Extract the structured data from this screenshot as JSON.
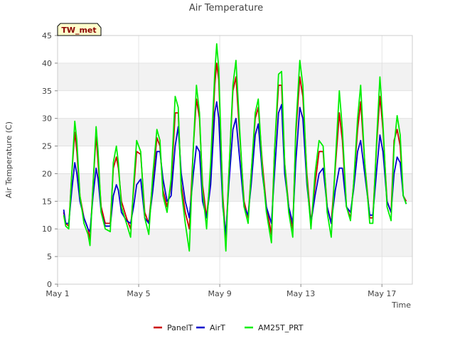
{
  "chart_data": {
    "type": "line",
    "title": "Air Temperature",
    "badge": "TW_met",
    "xlabel": "Time",
    "ylabel": "Air Temperature (C)",
    "xlim": [
      1,
      18.5
    ],
    "ylim": [
      0,
      45
    ],
    "yticks": [
      0,
      5,
      10,
      15,
      20,
      25,
      30,
      35,
      40,
      45
    ],
    "xticks": [
      {
        "label": "May 1",
        "day": 1
      },
      {
        "label": "May 5",
        "day": 5
      },
      {
        "label": "May 9",
        "day": 9
      },
      {
        "label": "May 13",
        "day": 13
      },
      {
        "label": "May 17",
        "day": 17
      }
    ],
    "grid": true,
    "legend_position": "bottom",
    "x_unit": "day of May",
    "series": [
      {
        "name": "PanelT",
        "color": "#cc0000",
        "points": [
          [
            1.3,
            13
          ],
          [
            1.4,
            11
          ],
          [
            1.55,
            10.5
          ],
          [
            1.7,
            20
          ],
          [
            1.85,
            27.5
          ],
          [
            1.95,
            24
          ],
          [
            2.1,
            16
          ],
          [
            2.3,
            12
          ],
          [
            2.5,
            10
          ],
          [
            2.6,
            8
          ],
          [
            2.75,
            18
          ],
          [
            2.9,
            27
          ],
          [
            3.0,
            22
          ],
          [
            3.15,
            14
          ],
          [
            3.35,
            11
          ],
          [
            3.6,
            11
          ],
          [
            3.75,
            21
          ],
          [
            3.9,
            23
          ],
          [
            4.0,
            21
          ],
          [
            4.15,
            15
          ],
          [
            4.4,
            12
          ],
          [
            4.6,
            10
          ],
          [
            4.75,
            17
          ],
          [
            4.9,
            24
          ],
          [
            5.1,
            23.5
          ],
          [
            5.3,
            13
          ],
          [
            5.5,
            11
          ],
          [
            5.7,
            19
          ],
          [
            5.9,
            26.5
          ],
          [
            6.05,
            25
          ],
          [
            6.2,
            17
          ],
          [
            6.4,
            14
          ],
          [
            6.6,
            18
          ],
          [
            6.8,
            31
          ],
          [
            6.95,
            31
          ],
          [
            7.1,
            18
          ],
          [
            7.3,
            13
          ],
          [
            7.5,
            10
          ],
          [
            7.7,
            25
          ],
          [
            7.85,
            33.5
          ],
          [
            8.0,
            30
          ],
          [
            8.15,
            18
          ],
          [
            8.35,
            12
          ],
          [
            8.55,
            20
          ],
          [
            8.75,
            36
          ],
          [
            8.85,
            40
          ],
          [
            8.95,
            37
          ],
          [
            9.15,
            16
          ],
          [
            9.3,
            8
          ],
          [
            9.45,
            20
          ],
          [
            9.65,
            35
          ],
          [
            9.8,
            37.5
          ],
          [
            10.0,
            26
          ],
          [
            10.2,
            15
          ],
          [
            10.4,
            12
          ],
          [
            10.55,
            20
          ],
          [
            10.75,
            30
          ],
          [
            10.9,
            32
          ],
          [
            11.1,
            22
          ],
          [
            11.3,
            14
          ],
          [
            11.55,
            9
          ],
          [
            11.7,
            24
          ],
          [
            11.9,
            36
          ],
          [
            12.05,
            36
          ],
          [
            12.2,
            22
          ],
          [
            12.4,
            14
          ],
          [
            12.6,
            10
          ],
          [
            12.75,
            27
          ],
          [
            12.95,
            37.5
          ],
          [
            13.1,
            34
          ],
          [
            13.3,
            20
          ],
          [
            13.5,
            11
          ],
          [
            13.7,
            18
          ],
          [
            13.9,
            24
          ],
          [
            14.1,
            24
          ],
          [
            14.3,
            14
          ],
          [
            14.5,
            11
          ],
          [
            14.7,
            21
          ],
          [
            14.9,
            31
          ],
          [
            15.05,
            26
          ],
          [
            15.25,
            14
          ],
          [
            15.45,
            12
          ],
          [
            15.6,
            18
          ],
          [
            15.8,
            28
          ],
          [
            15.95,
            33
          ],
          [
            16.15,
            22
          ],
          [
            16.4,
            12
          ],
          [
            16.55,
            12
          ],
          [
            16.75,
            26
          ],
          [
            16.9,
            34
          ],
          [
            17.05,
            28
          ],
          [
            17.25,
            15
          ],
          [
            17.45,
            13
          ],
          [
            17.6,
            26
          ],
          [
            17.75,
            28
          ],
          [
            17.9,
            25
          ],
          [
            18.05,
            16
          ],
          [
            18.2,
            15
          ]
        ]
      },
      {
        "name": "AirT",
        "color": "#0000cc",
        "points": [
          [
            1.3,
            13.5
          ],
          [
            1.4,
            11
          ],
          [
            1.55,
            11
          ],
          [
            1.7,
            17
          ],
          [
            1.85,
            22
          ],
          [
            1.95,
            20
          ],
          [
            2.1,
            15
          ],
          [
            2.3,
            12
          ],
          [
            2.5,
            10
          ],
          [
            2.6,
            9.5
          ],
          [
            2.75,
            16
          ],
          [
            2.9,
            21
          ],
          [
            3.0,
            19
          ],
          [
            3.15,
            13
          ],
          [
            3.35,
            10.5
          ],
          [
            3.6,
            10.5
          ],
          [
            3.75,
            16
          ],
          [
            3.9,
            18
          ],
          [
            4.0,
            17
          ],
          [
            4.15,
            13
          ],
          [
            4.4,
            11.5
          ],
          [
            4.6,
            11
          ],
          [
            4.75,
            14
          ],
          [
            4.9,
            18
          ],
          [
            5.1,
            19
          ],
          [
            5.3,
            12
          ],
          [
            5.5,
            11
          ],
          [
            5.7,
            17
          ],
          [
            5.9,
            24
          ],
          [
            6.05,
            24
          ],
          [
            6.2,
            19
          ],
          [
            6.4,
            15
          ],
          [
            6.6,
            16
          ],
          [
            6.8,
            25
          ],
          [
            6.95,
            28.5
          ],
          [
            7.1,
            20
          ],
          [
            7.3,
            15
          ],
          [
            7.5,
            12
          ],
          [
            7.7,
            20
          ],
          [
            7.85,
            25
          ],
          [
            8.0,
            24
          ],
          [
            8.15,
            15
          ],
          [
            8.35,
            12
          ],
          [
            8.55,
            18
          ],
          [
            8.75,
            31
          ],
          [
            8.85,
            33
          ],
          [
            8.95,
            30
          ],
          [
            9.15,
            14
          ],
          [
            9.3,
            9
          ],
          [
            9.45,
            18
          ],
          [
            9.65,
            28
          ],
          [
            9.8,
            30
          ],
          [
            10.0,
            22
          ],
          [
            10.2,
            14
          ],
          [
            10.4,
            12.5
          ],
          [
            10.55,
            18
          ],
          [
            10.75,
            27
          ],
          [
            10.9,
            29
          ],
          [
            11.1,
            20
          ],
          [
            11.3,
            14
          ],
          [
            11.55,
            11
          ],
          [
            11.7,
            20
          ],
          [
            11.9,
            31
          ],
          [
            12.05,
            32.5
          ],
          [
            12.2,
            20
          ],
          [
            12.4,
            14
          ],
          [
            12.6,
            11
          ],
          [
            12.75,
            22
          ],
          [
            12.95,
            32
          ],
          [
            13.1,
            30
          ],
          [
            13.3,
            18
          ],
          [
            13.5,
            11
          ],
          [
            13.7,
            16
          ],
          [
            13.9,
            20
          ],
          [
            14.1,
            21
          ],
          [
            14.3,
            14
          ],
          [
            14.5,
            11
          ],
          [
            14.7,
            17
          ],
          [
            14.9,
            21
          ],
          [
            15.05,
            21
          ],
          [
            15.25,
            14
          ],
          [
            15.45,
            13
          ],
          [
            15.6,
            17
          ],
          [
            15.8,
            24
          ],
          [
            15.95,
            26
          ],
          [
            16.15,
            20
          ],
          [
            16.4,
            12.5
          ],
          [
            16.55,
            12.5
          ],
          [
            16.75,
            21
          ],
          [
            16.9,
            27
          ],
          [
            17.05,
            24
          ],
          [
            17.25,
            15
          ],
          [
            17.45,
            13
          ],
          [
            17.6,
            20
          ],
          [
            17.75,
            23
          ],
          [
            17.9,
            22
          ],
          [
            18.05,
            16
          ],
          [
            18.2,
            14.5
          ]
        ]
      },
      {
        "name": "AM25T_PRT",
        "color": "#00ee00",
        "points": [
          [
            1.3,
            12.5
          ],
          [
            1.4,
            10.5
          ],
          [
            1.55,
            10
          ],
          [
            1.7,
            20
          ],
          [
            1.85,
            29.5
          ],
          [
            1.95,
            26
          ],
          [
            2.1,
            16
          ],
          [
            2.3,
            11
          ],
          [
            2.5,
            9
          ],
          [
            2.6,
            7
          ],
          [
            2.75,
            18
          ],
          [
            2.9,
            28.5
          ],
          [
            3.0,
            24
          ],
          [
            3.15,
            13
          ],
          [
            3.35,
            10
          ],
          [
            3.6,
            9.5
          ],
          [
            3.75,
            22
          ],
          [
            3.9,
            25
          ],
          [
            4.0,
            22
          ],
          [
            4.15,
            14
          ],
          [
            4.4,
            11
          ],
          [
            4.6,
            8.5
          ],
          [
            4.75,
            18
          ],
          [
            4.9,
            26
          ],
          [
            5.1,
            24
          ],
          [
            5.3,
            12
          ],
          [
            5.5,
            9
          ],
          [
            5.7,
            20
          ],
          [
            5.9,
            28
          ],
          [
            6.05,
            26
          ],
          [
            6.2,
            16
          ],
          [
            6.4,
            13
          ],
          [
            6.6,
            19
          ],
          [
            6.8,
            34
          ],
          [
            6.95,
            32
          ],
          [
            7.1,
            17
          ],
          [
            7.3,
            11
          ],
          [
            7.5,
            6
          ],
          [
            7.7,
            25
          ],
          [
            7.85,
            36
          ],
          [
            8.0,
            31
          ],
          [
            8.15,
            17
          ],
          [
            8.35,
            10
          ],
          [
            8.55,
            22
          ],
          [
            8.75,
            38
          ],
          [
            8.85,
            43.5
          ],
          [
            8.95,
            39
          ],
          [
            9.15,
            15
          ],
          [
            9.3,
            6
          ],
          [
            9.45,
            20
          ],
          [
            9.65,
            36
          ],
          [
            9.8,
            40.5
          ],
          [
            10.0,
            27
          ],
          [
            10.2,
            14
          ],
          [
            10.4,
            11
          ],
          [
            10.55,
            20
          ],
          [
            10.75,
            31
          ],
          [
            10.9,
            33.5
          ],
          [
            11.1,
            21
          ],
          [
            11.3,
            13
          ],
          [
            11.55,
            7.5
          ],
          [
            11.7,
            24
          ],
          [
            11.9,
            38
          ],
          [
            12.05,
            38.5
          ],
          [
            12.2,
            22
          ],
          [
            12.4,
            13
          ],
          [
            12.6,
            8.5
          ],
          [
            12.75,
            28
          ],
          [
            12.95,
            40.5
          ],
          [
            13.1,
            36
          ],
          [
            13.3,
            19
          ],
          [
            13.5,
            10
          ],
          [
            13.7,
            20
          ],
          [
            13.9,
            26
          ],
          [
            14.1,
            25
          ],
          [
            14.3,
            13
          ],
          [
            14.5,
            8.5
          ],
          [
            14.7,
            22
          ],
          [
            14.9,
            35
          ],
          [
            15.05,
            28
          ],
          [
            15.25,
            14
          ],
          [
            15.45,
            11.5
          ],
          [
            15.6,
            18
          ],
          [
            15.8,
            30
          ],
          [
            15.95,
            36
          ],
          [
            16.15,
            22
          ],
          [
            16.4,
            11
          ],
          [
            16.55,
            11
          ],
          [
            16.75,
            27
          ],
          [
            16.9,
            37.5
          ],
          [
            17.05,
            29
          ],
          [
            17.25,
            14
          ],
          [
            17.45,
            11.5
          ],
          [
            17.6,
            25
          ],
          [
            17.75,
            30.5
          ],
          [
            17.9,
            27
          ],
          [
            18.05,
            16
          ],
          [
            18.2,
            14.5
          ]
        ]
      }
    ]
  },
  "colors": {
    "badge_bg": "#ffffcc",
    "band": "#f2f2f2",
    "grid": "#dddddd"
  }
}
